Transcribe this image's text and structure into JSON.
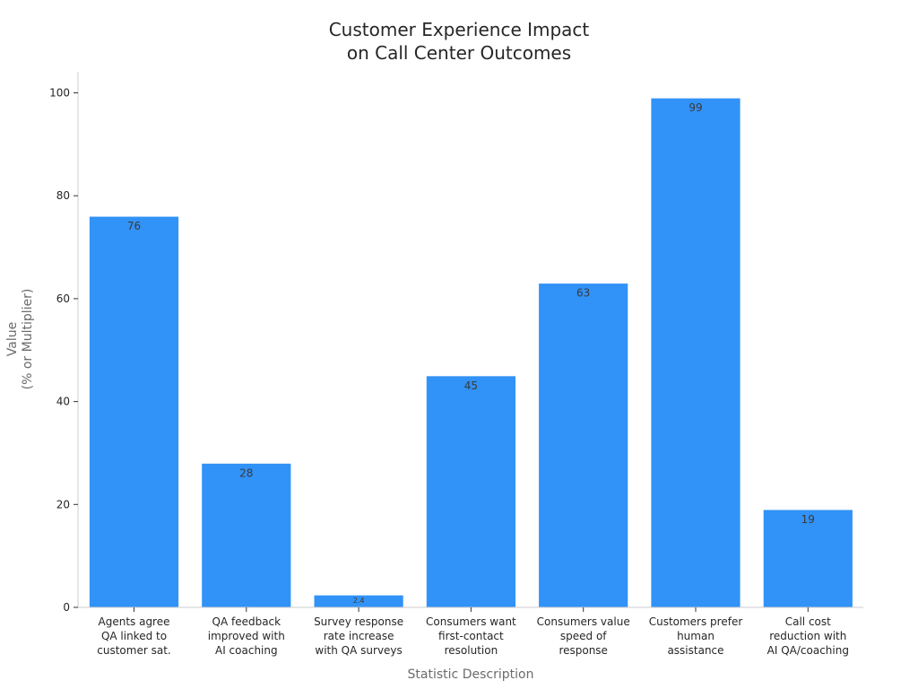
{
  "chart_data": {
    "type": "bar",
    "title_lines": [
      "Customer Experience Impact",
      "on Call Center Outcomes"
    ],
    "xlabel": "Statistic Description",
    "ylabel_lines": [
      "Value",
      "(% or Multiplier)"
    ],
    "ylim": [
      0,
      104
    ],
    "yticks": [
      0,
      20,
      40,
      60,
      80,
      100
    ],
    "grid": false,
    "legend": "none",
    "categories": [
      [
        "Agents agree",
        "QA linked to",
        "customer sat."
      ],
      [
        "QA feedback",
        "improved with",
        "AI coaching"
      ],
      [
        "Survey response",
        "rate increase",
        "with QA surveys"
      ],
      [
        "Consumers want",
        "first-contact",
        "resolution"
      ],
      [
        "Consumers value",
        "speed of",
        "response"
      ],
      [
        "Customers prefer",
        "human",
        "assistance"
      ],
      [
        "Call cost",
        "reduction with",
        "AI QA/coaching"
      ]
    ],
    "values": [
      76,
      28,
      2.4,
      45,
      63,
      99,
      19
    ],
    "value_labels": [
      "76",
      "28",
      "2.4",
      "45",
      "63",
      "99",
      "19"
    ],
    "colors": {
      "bar": "#3192f7",
      "axis": "#cccccc",
      "text": "#262626"
    }
  }
}
